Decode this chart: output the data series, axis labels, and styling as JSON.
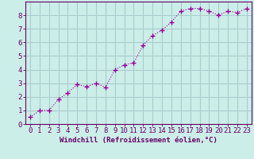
{
  "x": [
    0,
    1,
    2,
    3,
    4,
    5,
    6,
    7,
    8,
    9,
    10,
    11,
    12,
    13,
    14,
    15,
    16,
    17,
    18,
    19,
    20,
    21,
    22,
    23
  ],
  "y": [
    0.5,
    1.0,
    1.0,
    1.8,
    2.3,
    2.9,
    2.75,
    3.0,
    2.7,
    4.0,
    4.35,
    4.5,
    5.8,
    6.5,
    6.9,
    7.5,
    8.3,
    8.5,
    8.5,
    8.3,
    8.0,
    8.3,
    8.2,
    8.5
  ],
  "line_color": "#990099",
  "marker": "+",
  "marker_size": 4,
  "bg_color": "#cceee8",
  "grid_color": "#aacccc",
  "xlabel": "Windchill (Refroidissement éolien,°C)",
  "xlim": [
    -0.5,
    23.5
  ],
  "ylim": [
    0,
    9
  ],
  "yticks": [
    0,
    1,
    2,
    3,
    4,
    5,
    6,
    7,
    8
  ],
  "xticks": [
    0,
    1,
    2,
    3,
    4,
    5,
    6,
    7,
    8,
    9,
    10,
    11,
    12,
    13,
    14,
    15,
    16,
    17,
    18,
    19,
    20,
    21,
    22,
    23
  ],
  "axis_color": "#660066",
  "tick_label_color": "#660066",
  "xlabel_color": "#660066",
  "xlabel_fontsize": 6.5,
  "tick_fontsize": 6.5
}
